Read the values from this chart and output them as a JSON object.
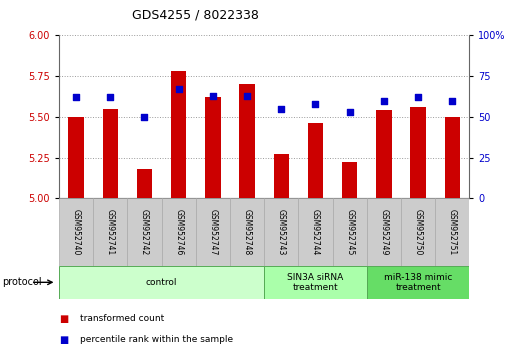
{
  "title": "GDS4255 / 8022338",
  "samples": [
    "GSM952740",
    "GSM952741",
    "GSM952742",
    "GSM952746",
    "GSM952747",
    "GSM952748",
    "GSM952743",
    "GSM952744",
    "GSM952745",
    "GSM952749",
    "GSM952750",
    "GSM952751"
  ],
  "transformed_counts": [
    5.5,
    5.55,
    5.18,
    5.78,
    5.62,
    5.7,
    5.27,
    5.46,
    5.22,
    5.54,
    5.56,
    5.5
  ],
  "percentile_ranks": [
    62,
    62,
    50,
    67,
    63,
    63,
    55,
    58,
    53,
    60,
    62,
    60
  ],
  "ylim_left": [
    5.0,
    6.0
  ],
  "ylim_right": [
    0,
    100
  ],
  "yticks_left": [
    5.0,
    5.25,
    5.5,
    5.75,
    6.0
  ],
  "yticks_right": [
    0,
    25,
    50,
    75,
    100
  ],
  "bar_color": "#cc0000",
  "dot_color": "#0000cc",
  "left_tick_color": "#cc0000",
  "right_tick_color": "#0000cc",
  "groups": [
    {
      "label": "control",
      "start": 0,
      "end": 6,
      "color": "#ccffcc"
    },
    {
      "label": "SIN3A siRNA\ntreatment",
      "start": 6,
      "end": 9,
      "color": "#aaffaa"
    },
    {
      "label": "miR-138 mimic\ntreatment",
      "start": 9,
      "end": 12,
      "color": "#66dd66"
    }
  ],
  "legend_items": [
    {
      "label": "transformed count",
      "color": "#cc0000"
    },
    {
      "label": "percentile rank within the sample",
      "color": "#0000cc"
    }
  ],
  "protocol_label": "protocol",
  "bar_width": 0.45,
  "grid_color": "#000000",
  "grid_alpha": 0.4
}
